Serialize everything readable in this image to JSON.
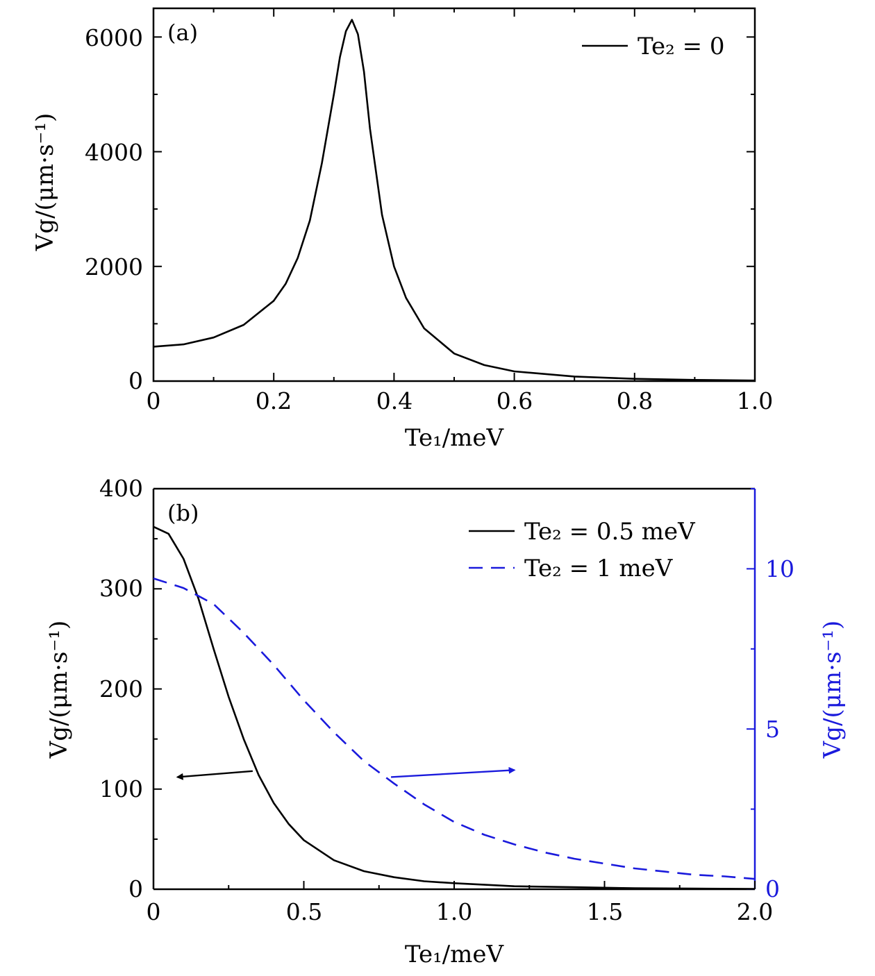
{
  "chart_data": [
    {
      "type": "line",
      "panel_label": "(a)",
      "xlabel": "Te₁/meV",
      "ylabel": "Vg/(μm·s⁻¹)",
      "xlim": [
        0,
        1.0
      ],
      "ylim": [
        0,
        6500
      ],
      "xticks": [
        "0",
        "0.2",
        "0.4",
        "0.6",
        "0.8",
        "1.0"
      ],
      "yticks": [
        "0",
        "2000",
        "4000",
        "6000"
      ],
      "legend_position": "top-right",
      "series": [
        {
          "name": "Te₂ = 0",
          "color": "#000000",
          "style": "solid",
          "x": [
            0,
            0.05,
            0.1,
            0.15,
            0.2,
            0.22,
            0.24,
            0.26,
            0.28,
            0.3,
            0.31,
            0.32,
            0.33,
            0.34,
            0.35,
            0.36,
            0.38,
            0.4,
            0.42,
            0.45,
            0.5,
            0.55,
            0.6,
            0.7,
            0.8,
            0.9,
            1.0
          ],
          "y": [
            600,
            640,
            760,
            980,
            1400,
            1700,
            2150,
            2800,
            3800,
            5000,
            5650,
            6100,
            6300,
            6050,
            5400,
            4400,
            2900,
            2000,
            1450,
            920,
            480,
            280,
            170,
            80,
            40,
            20,
            10
          ]
        }
      ]
    },
    {
      "type": "line",
      "panel_label": "(b)",
      "xlabel": "Te₁/meV",
      "ylabel_left": "Vg/(μm·s⁻¹)",
      "ylabel_right": "Vg/(μm·s⁻¹)",
      "xlim": [
        0,
        2.0
      ],
      "ylim_left": [
        0,
        400
      ],
      "ylim_right": [
        0,
        12.5
      ],
      "xticks": [
        "0",
        "0.5",
        "1.0",
        "1.5",
        "2.0"
      ],
      "yticks_left": [
        "0",
        "100",
        "200",
        "300",
        "400"
      ],
      "yticks_right": [
        "0",
        "5",
        "10"
      ],
      "right_axis_color": "#1a1adc",
      "legend_position": "top-right",
      "series": [
        {
          "name": "Te₂ = 0.5 meV",
          "axis": "left",
          "color": "#000000",
          "style": "solid",
          "x": [
            0,
            0.05,
            0.1,
            0.15,
            0.2,
            0.25,
            0.3,
            0.35,
            0.4,
            0.45,
            0.5,
            0.6,
            0.7,
            0.8,
            0.9,
            1.0,
            1.2,
            1.4,
            1.6,
            1.8,
            2.0
          ],
          "y": [
            362,
            355,
            330,
            290,
            240,
            192,
            150,
            114,
            86,
            65,
            49,
            29,
            18,
            12,
            8,
            6,
            3,
            2,
            1,
            0.6,
            0.3
          ]
        },
        {
          "name": "Te₂ = 1 meV",
          "axis": "right",
          "color": "#1a1adc",
          "style": "dashed",
          "x": [
            0,
            0.1,
            0.2,
            0.3,
            0.4,
            0.5,
            0.6,
            0.7,
            0.8,
            0.9,
            1.0,
            1.1,
            1.2,
            1.3,
            1.4,
            1.5,
            1.6,
            1.7,
            1.8,
            1.9,
            2.0
          ],
          "y": [
            9.7,
            9.4,
            8.9,
            8.0,
            7.0,
            5.9,
            4.9,
            4.0,
            3.3,
            2.65,
            2.1,
            1.7,
            1.4,
            1.15,
            0.95,
            0.8,
            0.65,
            0.55,
            0.45,
            0.4,
            0.32
          ]
        }
      ],
      "arrows": [
        {
          "target_axis": "left",
          "from": [
            0.33,
            118
          ],
          "to": [
            0.08,
            112
          ],
          "color": "#000000"
        },
        {
          "target_axis": "left",
          "from": [
            0.79,
            112
          ],
          "to": [
            1.2,
            119
          ],
          "color": "#1a1adc"
        }
      ]
    }
  ]
}
